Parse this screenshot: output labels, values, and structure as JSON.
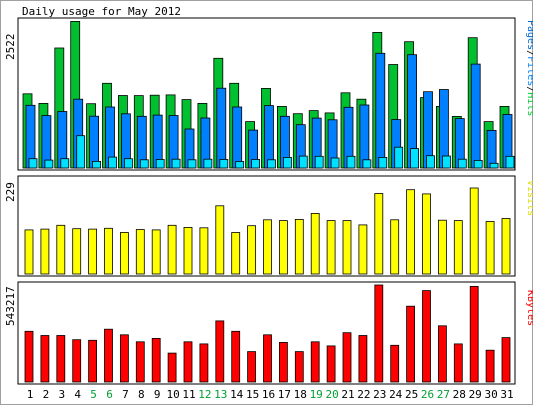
{
  "chart_data": {
    "type": "bar",
    "title": "Daily usage for May 2012",
    "categories": [
      "1",
      "2",
      "3",
      "4",
      "5",
      "6",
      "7",
      "8",
      "9",
      "10",
      "11",
      "12",
      "13",
      "14",
      "15",
      "16",
      "17",
      "18",
      "19",
      "20",
      "21",
      "22",
      "23",
      "24",
      "25",
      "26",
      "27",
      "28",
      "29",
      "30",
      "31"
    ],
    "weekend_days": [
      "5",
      "6",
      "12",
      "13",
      "19",
      "20",
      "26",
      "27"
    ],
    "panels": [
      {
        "key": "pages",
        "max_label": "2522",
        "ymax": 2522,
        "side_label_parts": [
          {
            "text": "Pages",
            "color": "#0066cc"
          },
          {
            "text": "/",
            "color": "#000000"
          },
          {
            "text": "Files",
            "color": "#0080ff"
          },
          {
            "text": "/",
            "color": "#000000"
          },
          {
            "text": "Hits",
            "color": "#00cc33"
          }
        ],
        "series": [
          {
            "name": "Hits",
            "color": "#00c030",
            "values": [
              1264,
              1101,
              2045,
              2498,
              1096,
              1443,
              1235,
              1233,
              1241,
              1246,
              1165,
              1101,
              1870,
              1444,
              790,
              1357,
              1050,
              925,
              978,
              939,
              1281,
              1172,
              2310,
              1764,
              2152,
              1200,
              1050,
              880,
              2220,
              790,
              1050
            ]
          },
          {
            "name": "Files",
            "color": "#0080ff",
            "values": [
              1068,
              893,
              963,
              1173,
              882,
              1040,
              924,
              881,
              902,
              894,
              665,
              852,
              1359,
              1039,
              646,
              1064,
              881,
              738,
              851,
              821,
              1035,
              1074,
              1955,
              825,
              1930,
              1300,
              1337,
              841,
              1770,
              640,
              911
            ]
          },
          {
            "name": "Pages",
            "color": "#00e0ff",
            "values": [
              158,
              134,
              158,
              550,
              113,
              186,
              158,
              140,
              145,
              150,
              140,
              150,
              145,
              110,
              145,
              140,
              180,
              203,
              200,
              170,
              200,
              140,
              180,
              354,
              330,
              210,
              205,
              150,
              130,
              80,
              200
            ]
          }
        ]
      },
      {
        "key": "visits",
        "max_label": "229",
        "ymax": 229,
        "side_label_parts": [
          {
            "text": "Visits",
            "color": "#e0e000"
          }
        ],
        "series": [
          {
            "name": "Visits",
            "color": "#ffff00",
            "values": [
              104,
              106,
              115,
              107,
              106,
              108,
              98,
              105,
              104,
              115,
              110,
              109,
              161,
              98,
              114,
              128,
              126,
              129,
              143,
              126,
              126,
              116,
              190,
              128,
              199,
              189,
              127,
              126,
              203,
              124,
              131
            ]
          }
        ]
      },
      {
        "key": "kbytes",
        "max_label": "543217",
        "ymax": 543217,
        "side_label_parts": [
          {
            "text": "KBytes",
            "color": "#ff0000"
          }
        ],
        "series": [
          {
            "name": "KBytes",
            "color": "#ff0000",
            "values": [
              283870,
              260450,
              260450,
              237030,
              233300,
              295580,
              264130,
              225320,
              244000,
              162000,
              225320,
              213610,
              342450,
              283870,
              170000,
              264130,
              221600,
              170000,
              225320,
              201900,
              276050,
              260450,
              543217,
              205720,
              424520,
              511920,
              314850,
              213610,
              535410,
              178000,
              248700
            ]
          }
        ]
      }
    ]
  }
}
